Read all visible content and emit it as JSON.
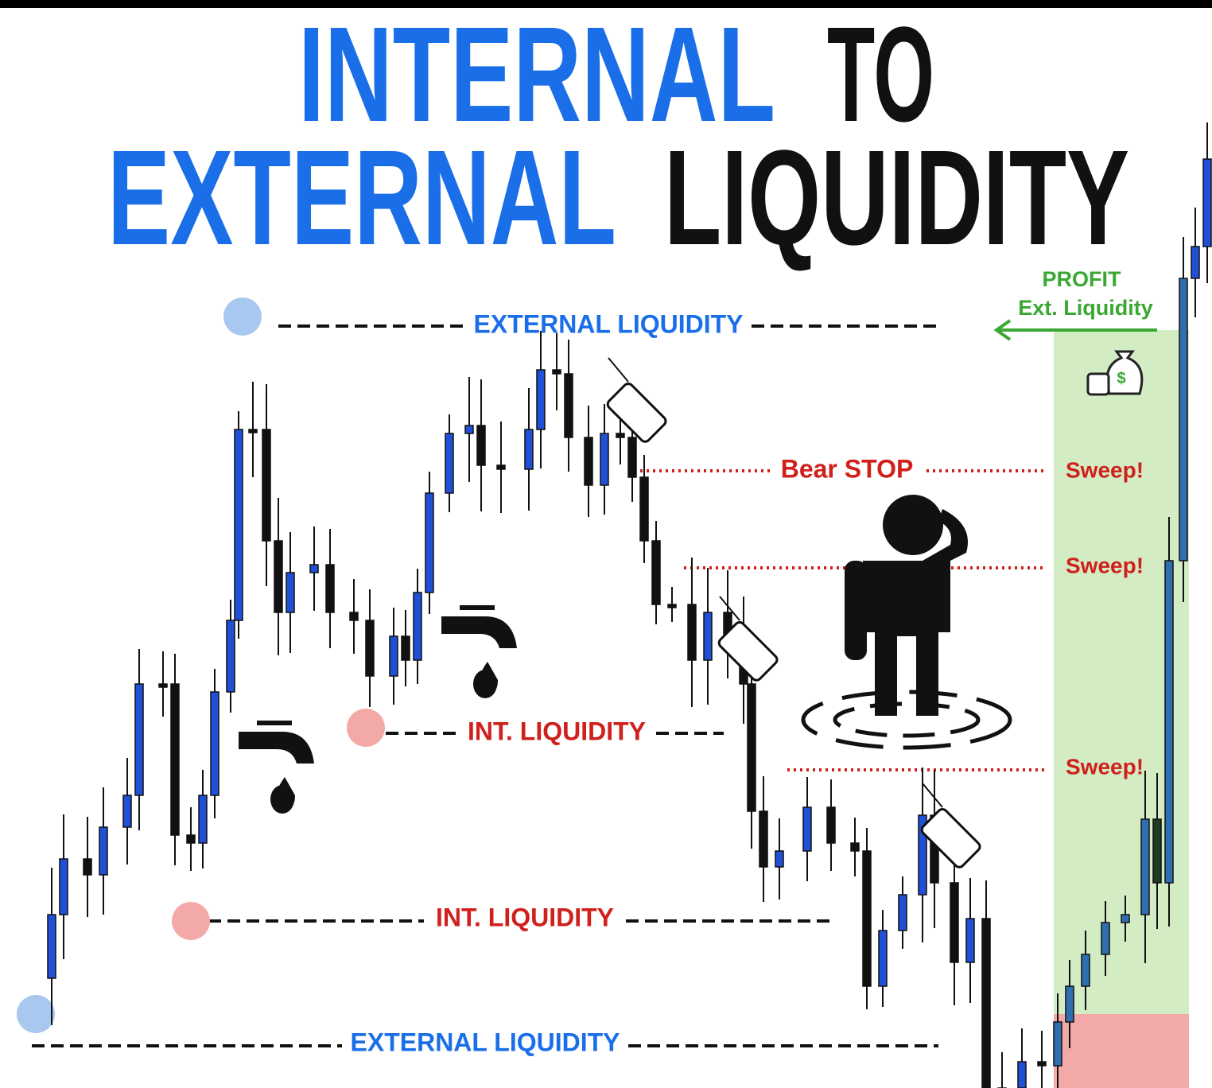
{
  "title": {
    "line1": [
      "INTERNAL",
      "TO"
    ],
    "line2": [
      "EXTERNAL",
      "LIQUIDITY"
    ]
  },
  "levels": {
    "external_top": "EXTERNAL LIQUIDITY",
    "bear_stop": "Bear STOP",
    "internal_upper": "INT. LIQUIDITY",
    "internal_lower": "INT. LIQUIDITY",
    "external_bottom": "EXTERNAL LIQUIDITY"
  },
  "sweeps": [
    "Sweep!",
    "Sweep!",
    "Sweep!"
  ],
  "profit": {
    "label": "PROFIT",
    "target": "Ext. Liquidity"
  }
}
